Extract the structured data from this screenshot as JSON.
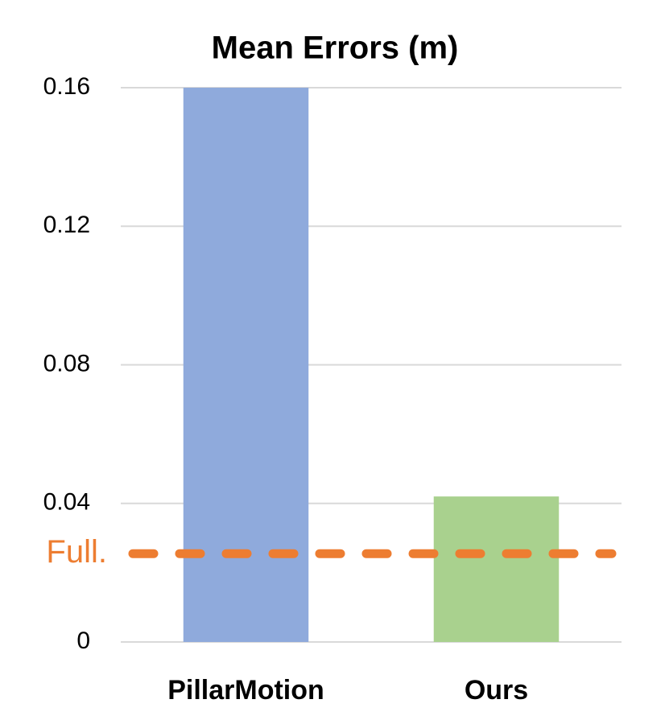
{
  "chart_data": {
    "type": "bar",
    "title": "Mean Errors (m)",
    "categories": [
      "PillarMotion",
      "Ours"
    ],
    "values": [
      0.16,
      0.042
    ],
    "colors": [
      "#8faadc",
      "#a9d18e"
    ],
    "ylim": [
      0,
      0.16
    ],
    "yticks": [
      0,
      0.04,
      0.08,
      0.12,
      0.16
    ],
    "grid": true,
    "reference_line": {
      "label": "Full.",
      "value": 0.0255,
      "color": "#ed7d31"
    }
  }
}
